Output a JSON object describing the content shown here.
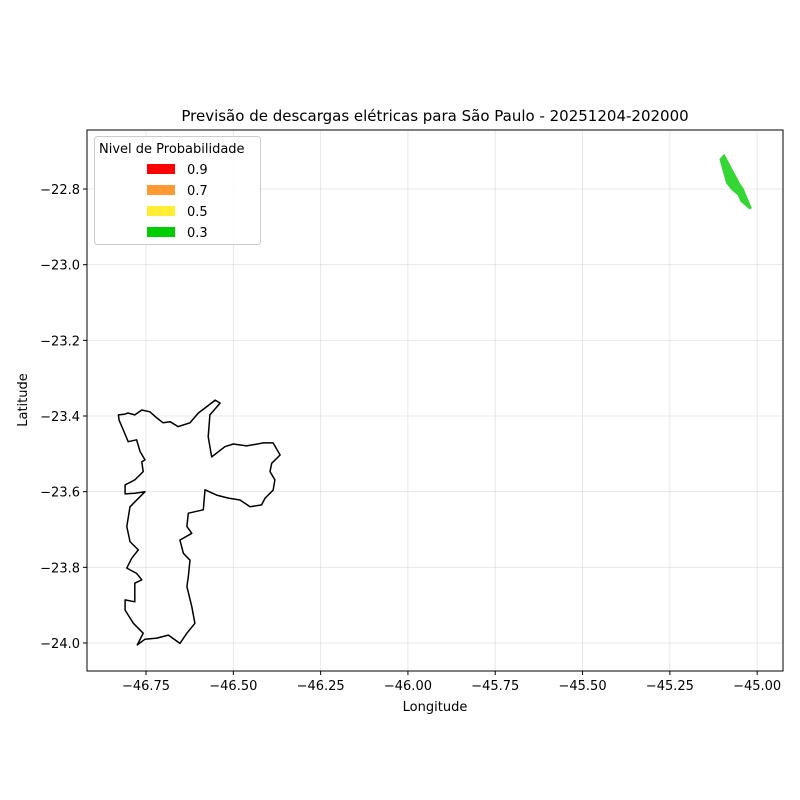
{
  "chart_data": {
    "type": "map",
    "title": "Previsão de descargas elétricas para São Paulo - 20251204-202000",
    "xlabel": "Longitude",
    "ylabel": "Latitude",
    "xlim": [
      -46.919,
      -44.926
    ],
    "ylim": [
      -24.074,
      -22.644
    ],
    "grid": true,
    "x_ticks": [
      -46.75,
      -46.5,
      -46.25,
      -46.0,
      -45.75,
      -45.5,
      -45.25,
      -45.0
    ],
    "x_tick_labels": [
      "−46.75",
      "−46.50",
      "−46.25",
      "−46.00",
      "−45.75",
      "−45.50",
      "−45.25",
      "−45.00"
    ],
    "y_ticks": [
      -22.8,
      -23.0,
      -23.2,
      -23.4,
      -23.6,
      -23.8,
      -24.0
    ],
    "y_tick_labels": [
      "−22.8",
      "−23.0",
      "−23.2",
      "−23.4",
      "−23.6",
      "−23.8",
      "−24.0"
    ],
    "legend": {
      "title": "Nivel de Probabilidade",
      "placement": "upper-left",
      "entries": [
        {
          "label": "0.9",
          "color": "#ff0000"
        },
        {
          "label": "0.7",
          "color": "#ff9933"
        },
        {
          "label": "0.5",
          "color": "#ffee33"
        },
        {
          "label": "0.3",
          "color": "#00cc00"
        }
      ]
    },
    "probability_areas": [
      {
        "level": 0.3,
        "color": "#33d633",
        "polygon": [
          [
            -45.108,
            -22.721
          ],
          [
            -45.094,
            -22.707
          ],
          [
            -45.049,
            -22.785
          ],
          [
            -45.039,
            -22.798
          ],
          [
            -45.015,
            -22.851
          ],
          [
            -45.022,
            -22.854
          ],
          [
            -45.047,
            -22.834
          ],
          [
            -45.056,
            -22.816
          ],
          [
            -45.073,
            -22.803
          ],
          [
            -45.089,
            -22.785
          ]
        ]
      }
    ],
    "boundary": {
      "color": "#000000",
      "polygon": [
        [
          -46.829,
          -23.397
        ],
        [
          -46.81,
          -23.395
        ],
        [
          -46.802,
          -23.392
        ],
        [
          -46.782,
          -23.397
        ],
        [
          -46.762,
          -23.384
        ],
        [
          -46.739,
          -23.389
        ],
        [
          -46.719,
          -23.405
        ],
        [
          -46.701,
          -23.418
        ],
        [
          -46.681,
          -23.415
        ],
        [
          -46.658,
          -23.428
        ],
        [
          -46.624,
          -23.418
        ],
        [
          -46.6,
          -23.392
        ],
        [
          -46.576,
          -23.375
        ],
        [
          -46.552,
          -23.358
        ],
        [
          -46.538,
          -23.366
        ],
        [
          -46.567,
          -23.397
        ],
        [
          -46.572,
          -23.455
        ],
        [
          -46.562,
          -23.508
        ],
        [
          -46.524,
          -23.481
        ],
        [
          -46.5,
          -23.474
        ],
        [
          -46.462,
          -23.479
        ],
        [
          -46.414,
          -23.471
        ],
        [
          -46.386,
          -23.471
        ],
        [
          -46.366,
          -23.503
        ],
        [
          -46.39,
          -23.525
        ],
        [
          -46.395,
          -23.547
        ],
        [
          -46.381,
          -23.569
        ],
        [
          -46.386,
          -23.596
        ],
        [
          -46.409,
          -23.617
        ],
        [
          -46.419,
          -23.635
        ],
        [
          -46.452,
          -23.64
        ],
        [
          -46.481,
          -23.622
        ],
        [
          -46.514,
          -23.617
        ],
        [
          -46.548,
          -23.609
        ],
        [
          -46.581,
          -23.595
        ],
        [
          -46.586,
          -23.648
        ],
        [
          -46.629,
          -23.657
        ],
        [
          -46.633,
          -23.692
        ],
        [
          -46.619,
          -23.71
        ],
        [
          -46.653,
          -23.728
        ],
        [
          -46.643,
          -23.763
        ],
        [
          -46.624,
          -23.781
        ],
        [
          -46.629,
          -23.825
        ],
        [
          -46.633,
          -23.851
        ],
        [
          -46.619,
          -23.904
        ],
        [
          -46.61,
          -23.948
        ],
        [
          -46.633,
          -23.974
        ],
        [
          -46.653,
          -24.001
        ],
        [
          -46.686,
          -23.979
        ],
        [
          -46.719,
          -23.987
        ],
        [
          -46.753,
          -23.99
        ],
        [
          -46.775,
          -24.005
        ],
        [
          -46.758,
          -23.974
        ],
        [
          -46.786,
          -23.948
        ],
        [
          -46.81,
          -23.913
        ],
        [
          -46.81,
          -23.886
        ],
        [
          -46.782,
          -23.891
        ],
        [
          -46.782,
          -23.842
        ],
        [
          -46.762,
          -23.833
        ],
        [
          -46.777,
          -23.816
        ],
        [
          -46.805,
          -23.802
        ],
        [
          -46.791,
          -23.776
        ],
        [
          -46.772,
          -23.754
        ],
        [
          -46.796,
          -23.732
        ],
        [
          -46.805,
          -23.692
        ],
        [
          -46.796,
          -23.64
        ],
        [
          -46.753,
          -23.6
        ],
        [
          -46.782,
          -23.604
        ],
        [
          -46.81,
          -23.606
        ],
        [
          -46.81,
          -23.582
        ],
        [
          -46.782,
          -23.569
        ],
        [
          -46.758,
          -23.547
        ],
        [
          -46.762,
          -23.521
        ],
        [
          -46.753,
          -23.516
        ],
        [
          -46.767,
          -23.494
        ],
        [
          -46.777,
          -23.463
        ],
        [
          -46.801,
          -23.468
        ],
        [
          -46.815,
          -23.437
        ],
        [
          -46.827,
          -23.411
        ]
      ]
    }
  }
}
